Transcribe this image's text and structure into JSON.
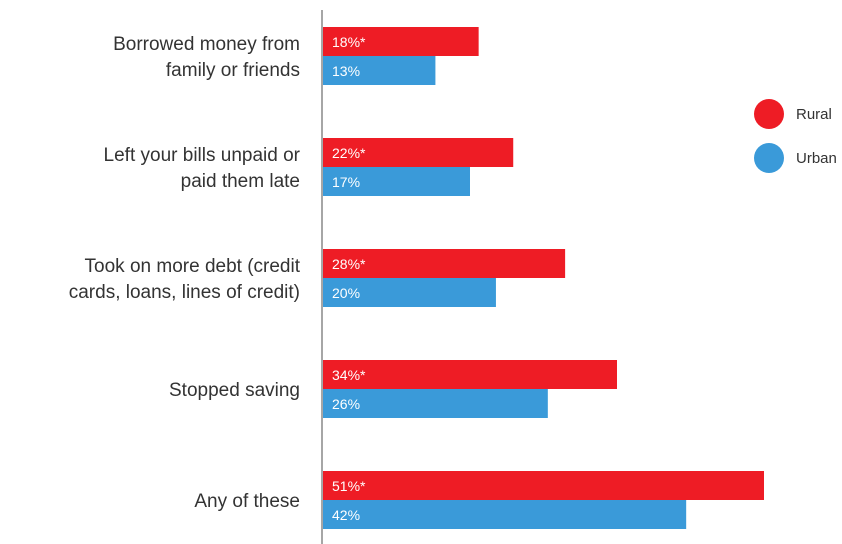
{
  "chart_data": {
    "type": "bar",
    "orientation": "horizontal",
    "categories": [
      [
        "Borrowed money from",
        "family or friends"
      ],
      [
        "Left your bills unpaid or",
        "paid them late"
      ],
      [
        "Took on more debt (credit",
        "cards, loans, lines of credit)"
      ],
      [
        "Stopped saving"
      ],
      [
        "Any of these"
      ]
    ],
    "series": [
      {
        "name": "Rural",
        "color": "#ee1c25",
        "values": [
          18,
          22,
          28,
          34,
          51
        ],
        "labels": [
          "18%*",
          "22%*",
          "28%*",
          "34%*",
          "51%*"
        ]
      },
      {
        "name": "Urban",
        "color": "#3a9ad9",
        "values": [
          13,
          17,
          20,
          26,
          42
        ],
        "labels": [
          "13%",
          "17%",
          "20%",
          "26%",
          "42%"
        ]
      }
    ],
    "xlim": [
      0,
      58
    ],
    "grid": false,
    "legend_position": "right"
  }
}
